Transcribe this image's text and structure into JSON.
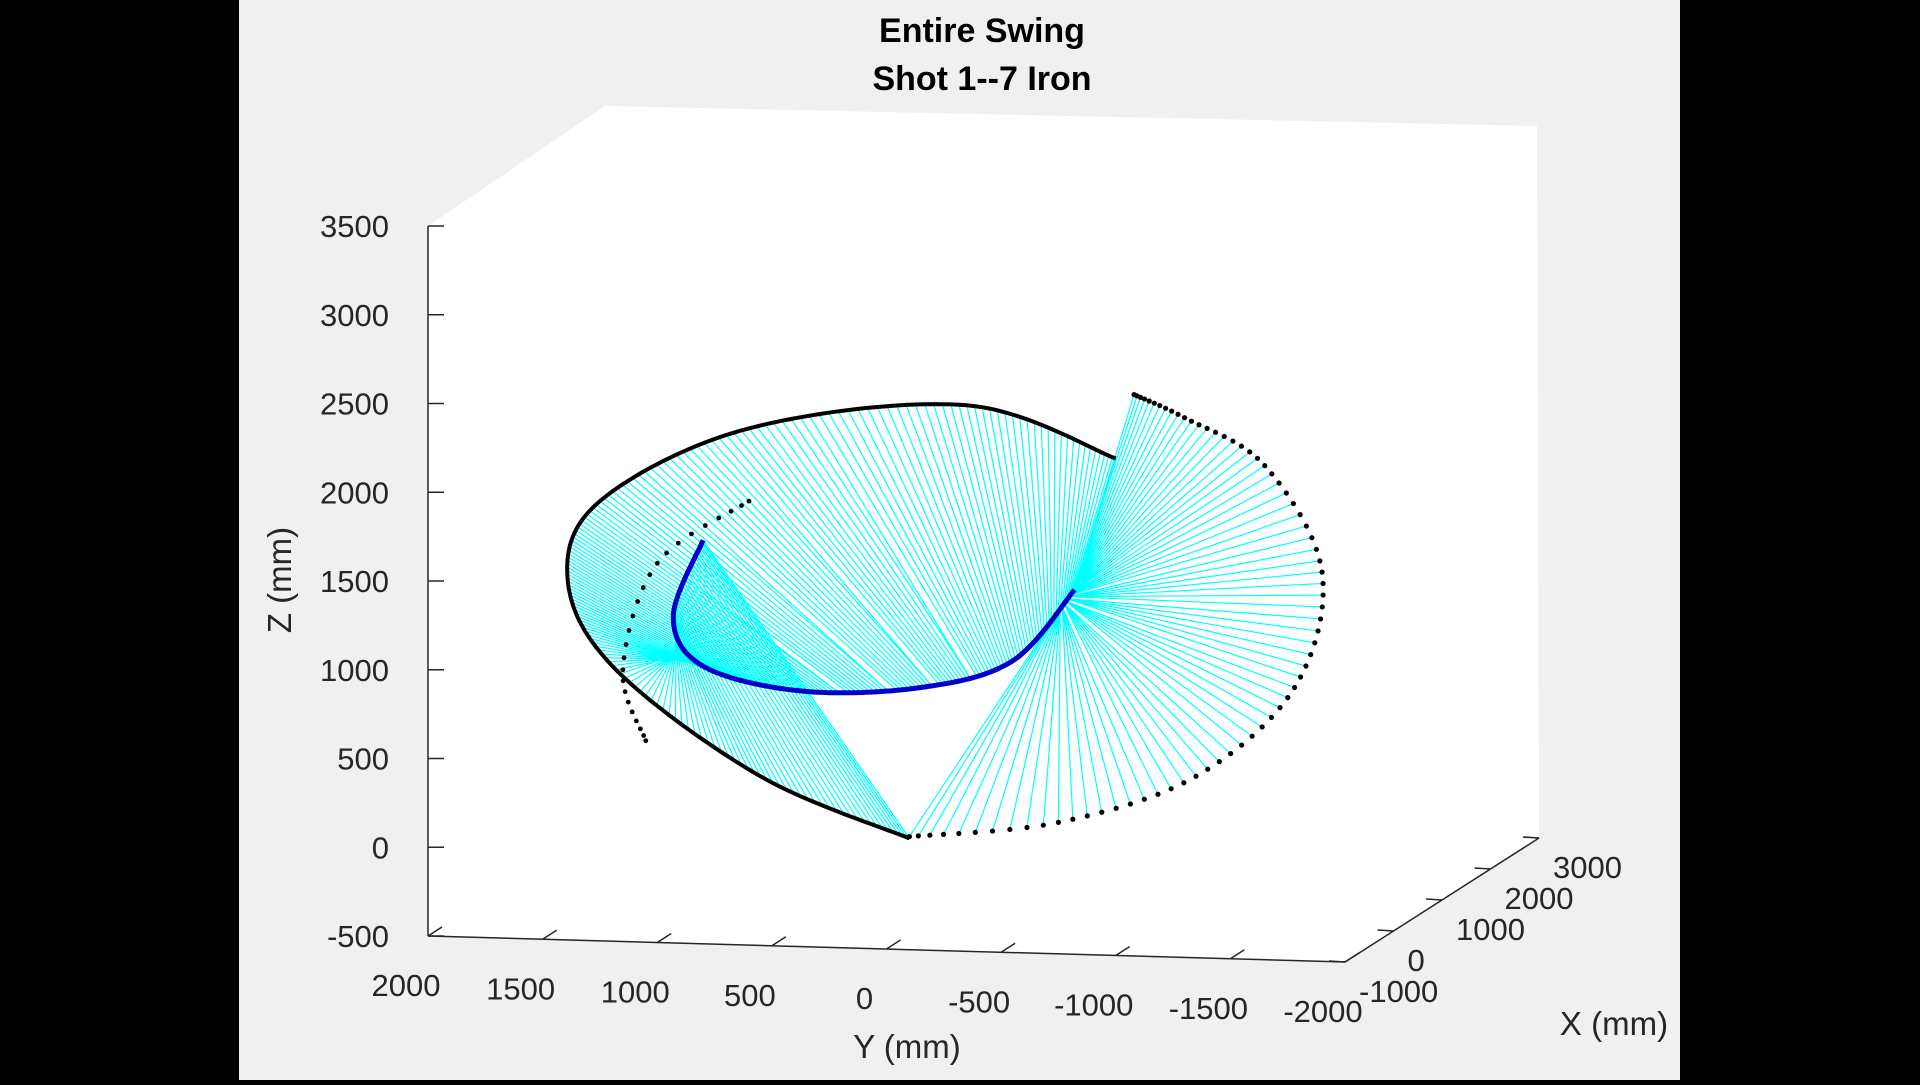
{
  "chart_data": {
    "type": "line",
    "projection": "3d",
    "title": [
      "Entire Swing",
      "Shot 1--7 Iron"
    ],
    "xlabel": "X (mm)",
    "ylabel": "Y (mm)",
    "zlabel": "Z (mm)",
    "xlim": [
      -1000,
      3000
    ],
    "ylim": [
      -2000,
      2000
    ],
    "zlim": [
      -500,
      3500
    ],
    "x_ticks": [
      "-1000",
      "0",
      "1000",
      "2000",
      "3000"
    ],
    "y_ticks": [
      "2000",
      "1500",
      "1000",
      "500",
      "0",
      "-500",
      "-1000",
      "-1500",
      "-2000"
    ],
    "z_ticks": [
      "3500",
      "3000",
      "2500",
      "2000",
      "1500",
      "1000",
      "500",
      "0",
      "-500"
    ],
    "grid": false,
    "colors": {
      "shaft_lines": "#00ffff",
      "hand_path": "#0000cc",
      "clubhead_path": "#000000",
      "axes_background": "#ffffff",
      "figure_background": "#f0f0f0"
    },
    "series": [
      {
        "marker": "dot",
        "color": "#000000",
        "points_yz": [
          [
            -100,
            50
          ],
          [
            550,
            400
          ],
          [
            1180,
            1000
          ],
          [
            1390,
            1500
          ],
          [
            1250,
            1950
          ],
          [
            600,
            2360
          ],
          [
            -350,
            2490
          ],
          [
            -1000,
            2190
          ]
        ]
      },
      {
        "marker": "none",
        "color": "#0000cc",
        "points_yz": [
          [
            800,
            1730
          ],
          [
            930,
            1300
          ],
          [
            800,
            1020
          ],
          [
            370,
            880
          ],
          [
            -150,
            900
          ],
          [
            -550,
            1050
          ],
          [
            -820,
            1450
          ]
        ]
      },
      {
        "marker": "dot",
        "color": "#000000",
        "points_yz": [
          [
            -1080,
            2550
          ],
          [
            -1300,
            2420
          ],
          [
            -1650,
            2150
          ],
          [
            -1900,
            1550
          ],
          [
            -1780,
            900
          ],
          [
            -1350,
            400
          ],
          [
            -750,
            140
          ],
          [
            -100,
            60
          ]
        ]
      }
    ]
  }
}
